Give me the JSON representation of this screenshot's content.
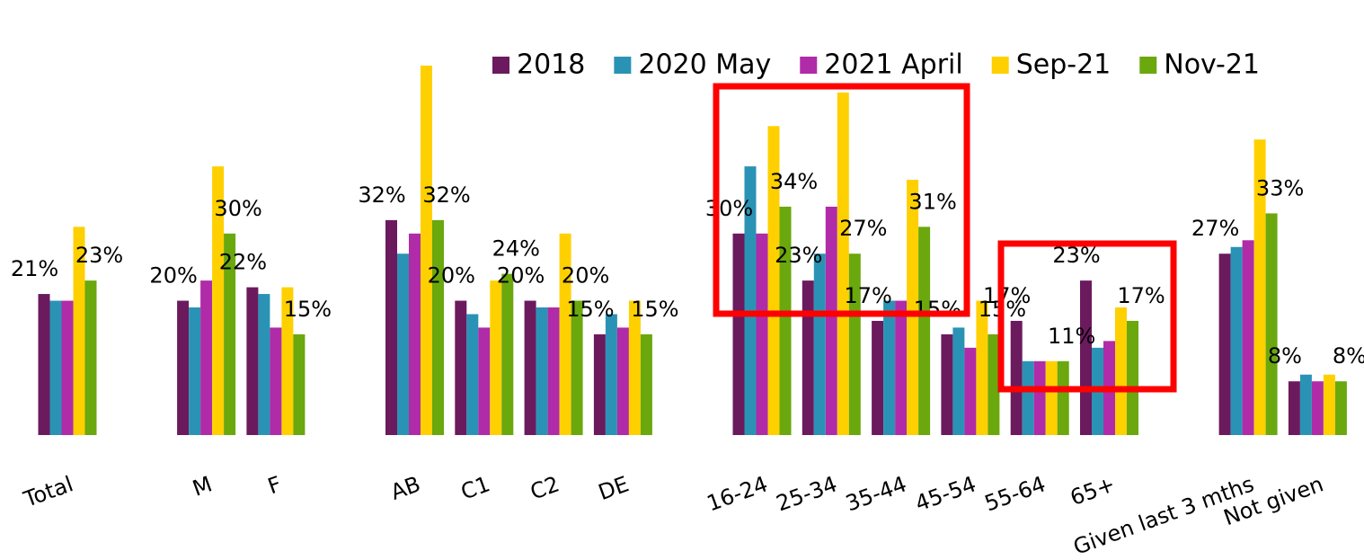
{
  "chart_data": {
    "type": "bar",
    "categories": [
      "Total",
      "M",
      "F",
      "AB",
      "C1",
      "C2",
      "DE",
      "16-24",
      "25-34",
      "35-44",
      "45-54",
      "55-64",
      "65+",
      "Given last 3 mths",
      "Not given"
    ],
    "series": [
      {
        "name": "2018",
        "color": "#6b1a5e",
        "values": [
          21,
          20,
          22,
          32,
          20,
          20,
          15,
          30,
          23,
          17,
          15,
          17,
          23,
          27,
          8
        ],
        "value_labels": [
          "21%",
          "20%",
          "22%",
          "32%",
          "20%",
          "20%",
          "15%",
          "30%",
          "23%",
          "17%",
          "15%",
          "17%",
          "23%",
          "27%",
          "8%"
        ]
      },
      {
        "name": "2020 May",
        "color": "#2a93b5",
        "values": [
          20,
          19,
          21,
          27,
          18,
          19,
          18,
          40,
          27,
          20,
          16,
          11,
          13,
          28,
          9
        ]
      },
      {
        "name": "2021 April",
        "color": "#b02ba8",
        "values": [
          20,
          23,
          16,
          30,
          16,
          19,
          16,
          30,
          34,
          20,
          13,
          11,
          14,
          29,
          8
        ]
      },
      {
        "name": "Sep-21",
        "color": "#ffd000",
        "values": [
          31,
          40,
          22,
          55,
          23,
          30,
          20,
          46,
          51,
          38,
          20,
          11,
          19,
          44,
          9
        ]
      },
      {
        "name": "Nov-21",
        "color": "#6aa80e",
        "values": [
          23,
          30,
          15,
          32,
          24,
          20,
          15,
          34,
          27,
          31,
          15,
          11,
          17,
          33,
          8
        ],
        "value_labels": [
          "23%",
          "30%",
          "15%",
          "32%",
          "24%",
          "20%",
          "15%",
          "34%",
          "27%",
          "31%",
          "15%",
          "11%",
          "17%",
          "33%",
          "8%"
        ]
      }
    ]
  }
}
